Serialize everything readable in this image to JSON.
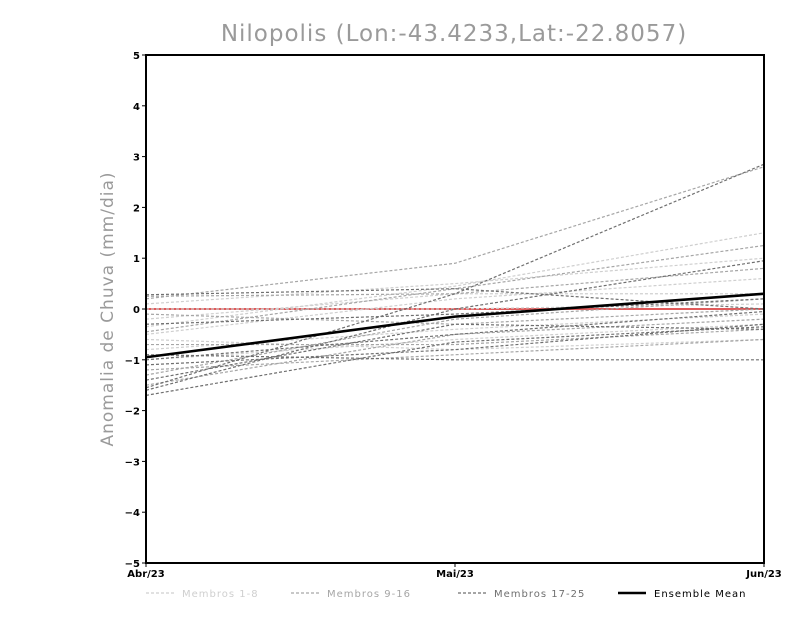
{
  "chart_data": {
    "type": "line",
    "title": "Nilopolis (Lon:-43.4233,Lat:-22.8057)",
    "ylabel": "Anomalia de Chuva (mm/dia)",
    "xlabel": "",
    "categories": [
      "Abr/23",
      "Mai/23",
      "Jun/23"
    ],
    "ylim": [
      -5,
      5
    ],
    "yticks": [
      "5",
      "4",
      "3",
      "2",
      "1",
      "0",
      "-1",
      "-2",
      "-3",
      "-4",
      "-5"
    ],
    "grid": false,
    "legend": "bottom",
    "zero_line_color": "#e05a5a",
    "series": [
      {
        "group": "Membros 1-8",
        "values": [
          -0.35,
          0.45,
          1.5
        ]
      },
      {
        "group": "Membros 1-8",
        "values": [
          0.1,
          0.5,
          1.0
        ]
      },
      {
        "group": "Membros 1-8",
        "values": [
          -0.5,
          0.2,
          0.6
        ]
      },
      {
        "group": "Membros 1-8",
        "values": [
          -0.2,
          0.3,
          0.3
        ]
      },
      {
        "group": "Membros 1-8",
        "values": [
          -0.8,
          -0.4,
          -0.1
        ]
      },
      {
        "group": "Membros 1-8",
        "values": [
          -1.0,
          -0.6,
          -0.3
        ]
      },
      {
        "group": "Membros 1-8",
        "values": [
          -0.6,
          -0.8,
          -0.6
        ]
      },
      {
        "group": "Membros 1-8",
        "values": [
          0.0,
          0.0,
          0.1
        ]
      },
      {
        "group": "Membros 9-16",
        "values": [
          0.2,
          0.9,
          2.8
        ]
      },
      {
        "group": "Membros 9-16",
        "values": [
          -0.45,
          0.4,
          1.25
        ]
      },
      {
        "group": "Membros 9-16",
        "values": [
          0.25,
          0.3,
          0.8
        ]
      },
      {
        "group": "Membros 9-16",
        "values": [
          -1.3,
          -0.2,
          0.2
        ]
      },
      {
        "group": "Membros 9-16",
        "values": [
          -1.5,
          -0.5,
          -0.2
        ]
      },
      {
        "group": "Membros 9-16",
        "values": [
          -0.7,
          -0.7,
          -0.4
        ]
      },
      {
        "group": "Membros 9-16",
        "values": [
          -1.2,
          -0.9,
          -0.6
        ]
      },
      {
        "group": "Membros 9-16",
        "values": [
          -0.1,
          -0.3,
          0.0
        ]
      },
      {
        "group": "Membros 17-25",
        "values": [
          -1.55,
          0.3,
          2.85
        ]
      },
      {
        "group": "Membros 17-25",
        "values": [
          0.28,
          0.4,
          0.0
        ]
      },
      {
        "group": "Membros 17-25",
        "values": [
          -1.6,
          0.0,
          0.95
        ]
      },
      {
        "group": "Membros 17-25",
        "values": [
          -1.7,
          -0.65,
          -0.35
        ]
      },
      {
        "group": "Membros 17-25",
        "values": [
          -0.9,
          -1.0,
          -1.0
        ]
      },
      {
        "group": "Membros 17-25",
        "values": [
          -1.1,
          -0.8,
          -0.3
        ]
      },
      {
        "group": "Membros 17-25",
        "values": [
          -1.4,
          -0.3,
          -0.4
        ]
      },
      {
        "group": "Membros 17-25",
        "values": [
          -0.3,
          -0.1,
          0.2
        ]
      },
      {
        "group": "Membros 17-25",
        "values": [
          -1.0,
          -0.5,
          -0.05
        ]
      },
      {
        "group": "Ensemble Mean",
        "values": [
          -0.95,
          -0.15,
          0.3
        ]
      }
    ],
    "legend_entries": [
      {
        "label": "Membros 1-8",
        "color": "#cfcfcf",
        "dash": true
      },
      {
        "label": "Membros 9-16",
        "color": "#a6a6a6",
        "dash": true
      },
      {
        "label": "Membros 17-25",
        "color": "#6f6f6f",
        "dash": true
      },
      {
        "label": "Ensemble Mean",
        "color": "#000000",
        "dash": false
      }
    ]
  }
}
